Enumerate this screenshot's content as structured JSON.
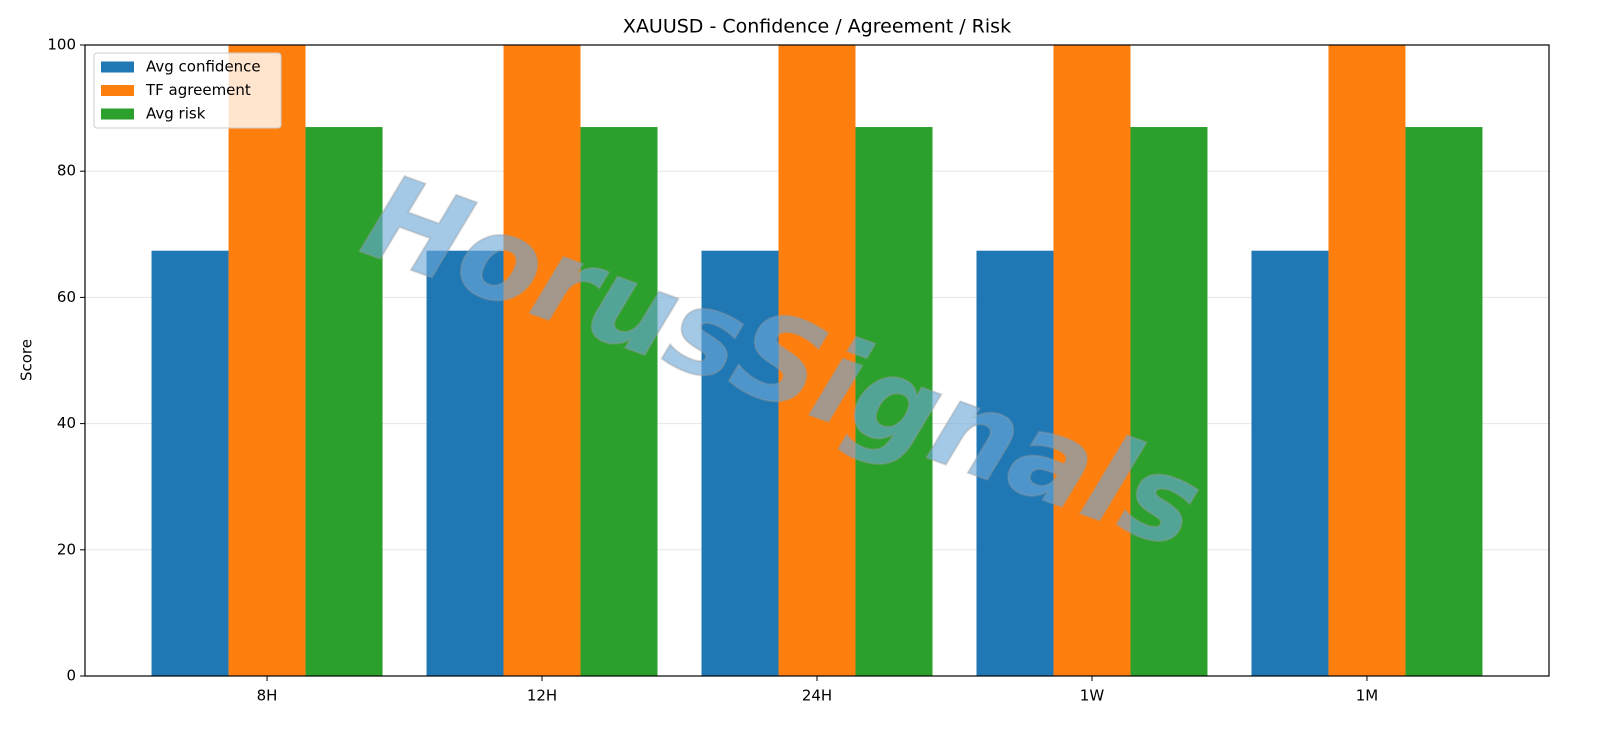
{
  "chart_data": {
    "type": "bar",
    "title": "XAUUSD - Confidence / Agreement / Risk",
    "ylabel": "Score",
    "watermark": "HorusSignals",
    "categories": [
      "8H",
      "12H",
      "24H",
      "1W",
      "1M"
    ],
    "series": [
      {
        "name": "Avg confidence",
        "color": "#1f77b4",
        "values": [
          67.4,
          67.4,
          67.4,
          67.4,
          67.4
        ]
      },
      {
        "name": "TF agreement",
        "color": "#ff7f0e",
        "values": [
          100,
          100,
          100,
          100,
          100
        ]
      },
      {
        "name": "Avg risk",
        "color": "#2ca02c",
        "values": [
          87.0,
          87.0,
          87.0,
          87.0,
          87.0
        ]
      }
    ],
    "ylim": [
      0,
      100
    ],
    "yticks": [
      0,
      20,
      40,
      60,
      80,
      100
    ],
    "grid": true,
    "legend": "upper left"
  }
}
